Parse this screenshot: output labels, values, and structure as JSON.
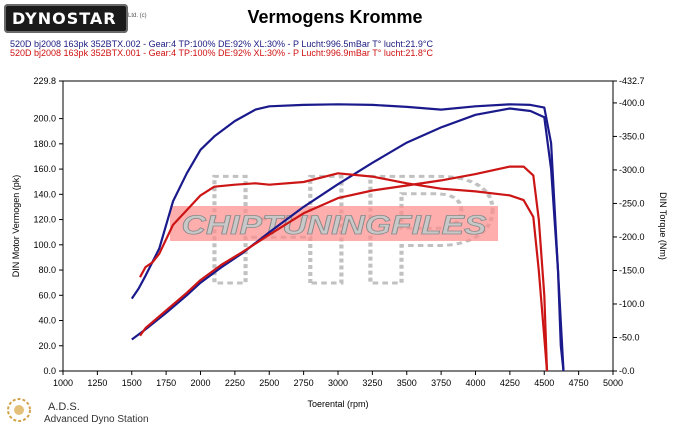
{
  "logo": {
    "text": "DYNOSTAR",
    "sub": "Ltd. (c)"
  },
  "header": {
    "title": "Vermogens Kromme",
    "runs": [
      "520D bj2008 163pk 352BTX.002 - Gear:4 TP:100% DE:92% XL:30%   - P Lucht:996.5mBar T° lucht:21.9°C",
      "520D bj2008 163pk 352BTX.001 - Gear:4 TP:100% DE:92% XL:30%   - P Lucht:996.9mBar T° lucht:21.8°C"
    ]
  },
  "footer": {
    "brand": "A.D.S.",
    "subtitle": "Advanced Dyno Station"
  },
  "colors": {
    "run1": "#1a1a8c",
    "run2": "#cc1515",
    "watermark_gray": "#9a9a9a",
    "watermark_red": "#ff8c8c",
    "frame": "#000000"
  },
  "watermark": {
    "text": "CHIPTUNINGFILES"
  },
  "chart_data": {
    "type": "line",
    "title": "Vermogens Kromme",
    "xlabel": "Toerental (rpm)",
    "ylabel": "DIN Motor Vermogen (pk)",
    "y2label": "DIN Torque (Nm)",
    "xlim": [
      1000,
      5000
    ],
    "ylim": [
      0,
      229.8
    ],
    "y2lim": [
      0,
      432.7
    ],
    "xticks": [
      "1000",
      "1250",
      "1500",
      "1750",
      "2000",
      "2250",
      "2500",
      "2750",
      "3000",
      "3250",
      "3500",
      "3750",
      "4000",
      "4250",
      "4500",
      "4750",
      "5000"
    ],
    "yticks": [
      "0.0",
      "20.0",
      "40.0",
      "60.0",
      "80.0",
      "100.0",
      "120.0",
      "140.0",
      "160.0",
      "180.0",
      "200.0",
      "229.8"
    ],
    "y2ticks": [
      "-0.0",
      "-50.0",
      "-100.0",
      "-150.0",
      "-200.0",
      "-250.0",
      "-300.0",
      "-350.0",
      "-400.0",
      "-432.7"
    ],
    "grid": false,
    "series": [
      {
        "axis": "power",
        "color": "#1a1a8c",
        "x": [
          1500,
          1600,
          1750,
          1900,
          2000,
          2150,
          2300,
          2500,
          2750,
          3000,
          3250,
          3500,
          3750,
          4000,
          4250,
          4400,
          4500,
          4550,
          4600,
          4620,
          4640
        ],
        "y": [
          25,
          33,
          46,
          60,
          70,
          82,
          93,
          110,
          130,
          148,
          165,
          181,
          193,
          203,
          208,
          206,
          201,
          160,
          80,
          20,
          0
        ]
      },
      {
        "axis": "torque",
        "color": "#1a1a8c",
        "x": [
          1500,
          1550,
          1600,
          1700,
          1800,
          1900,
          2000,
          2100,
          2250,
          2400,
          2500,
          2750,
          3000,
          3250,
          3500,
          3750,
          4000,
          4250,
          4400,
          4500,
          4550,
          4600,
          4640
        ],
        "y": [
          108,
          123,
          142,
          183,
          253,
          295,
          330,
          350,
          373,
          390,
          395,
          397,
          398,
          397,
          394,
          390,
          395,
          398,
          397,
          393,
          340,
          150,
          0
        ]
      },
      {
        "axis": "power",
        "color": "#cc1515",
        "x": [
          1560,
          1600,
          1750,
          1900,
          2000,
          2150,
          2300,
          2500,
          2750,
          3000,
          3250,
          3500,
          3750,
          4000,
          4250,
          4350,
          4420,
          4460,
          4500,
          4520
        ],
        "y": [
          28,
          34,
          48,
          62,
          72,
          84,
          94,
          108,
          125,
          137,
          143,
          147,
          151,
          156,
          162,
          162,
          155,
          120,
          60,
          0
        ]
      },
      {
        "axis": "torque",
        "color": "#cc1515",
        "x": [
          1560,
          1600,
          1650,
          1700,
          1800,
          1900,
          2000,
          2100,
          2250,
          2400,
          2500,
          2750,
          3000,
          3250,
          3500,
          3750,
          4000,
          4250,
          4350,
          4420,
          4460,
          4500,
          4520
        ],
        "y": [
          140,
          155,
          162,
          175,
          218,
          240,
          262,
          275,
          278,
          280,
          278,
          282,
          295,
          290,
          280,
          272,
          268,
          262,
          255,
          230,
          150,
          50,
          0
        ]
      }
    ]
  }
}
